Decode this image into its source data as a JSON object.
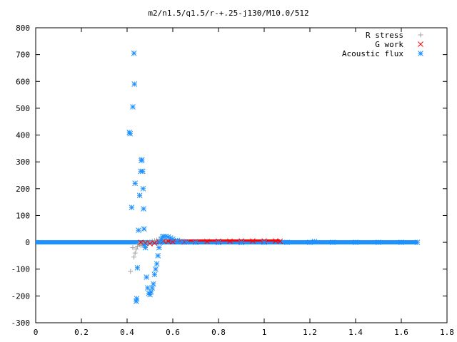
{
  "chart_data": {
    "type": "scatter",
    "title": "m2/n1.5/q1.5/r-+.25-j130/M10.0/512",
    "xlabel": "",
    "ylabel": "",
    "xlim": [
      0,
      1.8
    ],
    "ylim": [
      -300,
      800
    ],
    "x_ticks": [
      "0",
      "0.2",
      "0.4",
      "0.6",
      "0.8",
      "1",
      "1.2",
      "1.4",
      "1.6",
      "1.8"
    ],
    "y_ticks": [
      "800",
      "700",
      "600",
      "500",
      "400",
      "300",
      "200",
      "100",
      "0",
      "-100",
      "-200",
      "-300"
    ],
    "grid": false,
    "legend_position": "top-right",
    "series": [
      {
        "name": "R stress",
        "marker": "+",
        "color": "#a0a0a0",
        "points": [
          [
            0.415,
            -108
          ],
          [
            0.425,
            -20
          ],
          [
            0.43,
            -55
          ],
          [
            0.435,
            -40
          ],
          [
            0.44,
            -25
          ],
          [
            0.445,
            -15
          ],
          [
            0.45,
            -5
          ],
          [
            0.455,
            -8
          ],
          [
            0.46,
            -12
          ],
          [
            0.465,
            -6
          ],
          [
            0.47,
            -3
          ],
          [
            0.475,
            -5
          ],
          [
            0.48,
            -2
          ],
          [
            0.49,
            0
          ],
          [
            0.5,
            2
          ],
          [
            0.51,
            4
          ],
          [
            0.52,
            6
          ],
          [
            0.53,
            8
          ],
          [
            0.54,
            10
          ],
          [
            0.55,
            12
          ],
          [
            0.56,
            10
          ],
          [
            0.57,
            6
          ]
        ]
      },
      {
        "name": "G work",
        "marker": "x",
        "color": "#ff0000",
        "points": [
          [
            0.46,
            0
          ],
          [
            0.48,
            -3
          ],
          [
            0.5,
            -5
          ],
          [
            0.52,
            -3
          ],
          [
            0.54,
            2
          ],
          [
            0.56,
            5
          ],
          [
            0.58,
            4
          ],
          [
            0.6,
            2
          ],
          [
            0.65,
            1
          ],
          [
            0.7,
            2
          ],
          [
            0.75,
            3
          ],
          [
            0.8,
            4
          ],
          [
            0.85,
            4
          ],
          [
            0.9,
            5
          ],
          [
            0.95,
            5
          ],
          [
            1.0,
            5
          ],
          [
            1.05,
            5
          ],
          [
            1.07,
            4
          ]
        ]
      },
      {
        "name": "Acoustic flux",
        "marker": "*",
        "color": "#1e90ff",
        "points": [
          [
            0.41,
            410
          ],
          [
            0.413,
            405
          ],
          [
            0.42,
            130
          ],
          [
            0.425,
            505
          ],
          [
            0.43,
            705
          ],
          [
            0.432,
            590
          ],
          [
            0.435,
            220
          ],
          [
            0.44,
            -220
          ],
          [
            0.442,
            -210
          ],
          [
            0.445,
            -95
          ],
          [
            0.45,
            45
          ],
          [
            0.455,
            175
          ],
          [
            0.46,
            265
          ],
          [
            0.462,
            305
          ],
          [
            0.465,
            308
          ],
          [
            0.468,
            265
          ],
          [
            0.47,
            200
          ],
          [
            0.472,
            125
          ],
          [
            0.474,
            50
          ],
          [
            0.476,
            -10
          ],
          [
            0.48,
            -20
          ],
          [
            0.485,
            -130
          ],
          [
            0.49,
            -170
          ],
          [
            0.495,
            -190
          ],
          [
            0.5,
            -195
          ],
          [
            0.505,
            -185
          ],
          [
            0.51,
            -170
          ],
          [
            0.515,
            -155
          ],
          [
            0.52,
            -120
          ],
          [
            0.525,
            -100
          ],
          [
            0.53,
            -80
          ],
          [
            0.535,
            -50
          ],
          [
            0.54,
            -20
          ],
          [
            0.545,
            0
          ],
          [
            0.55,
            12
          ],
          [
            0.555,
            20
          ],
          [
            0.56,
            22
          ],
          [
            0.57,
            22
          ],
          [
            0.58,
            20
          ],
          [
            0.59,
            16
          ],
          [
            0.6,
            12
          ],
          [
            0.62,
            7
          ],
          [
            0.64,
            3
          ],
          [
            0.66,
            1
          ],
          [
            0.7,
            0
          ],
          [
            0.8,
            -1
          ],
          [
            0.9,
            -1
          ],
          [
            1.0,
            0
          ],
          [
            1.1,
            0
          ],
          [
            1.2,
            0
          ],
          [
            1.22,
            3
          ],
          [
            1.3,
            0
          ],
          [
            1.4,
            0
          ],
          [
            1.5,
            0
          ],
          [
            1.6,
            0
          ],
          [
            1.67,
            0
          ]
        ]
      }
    ]
  }
}
